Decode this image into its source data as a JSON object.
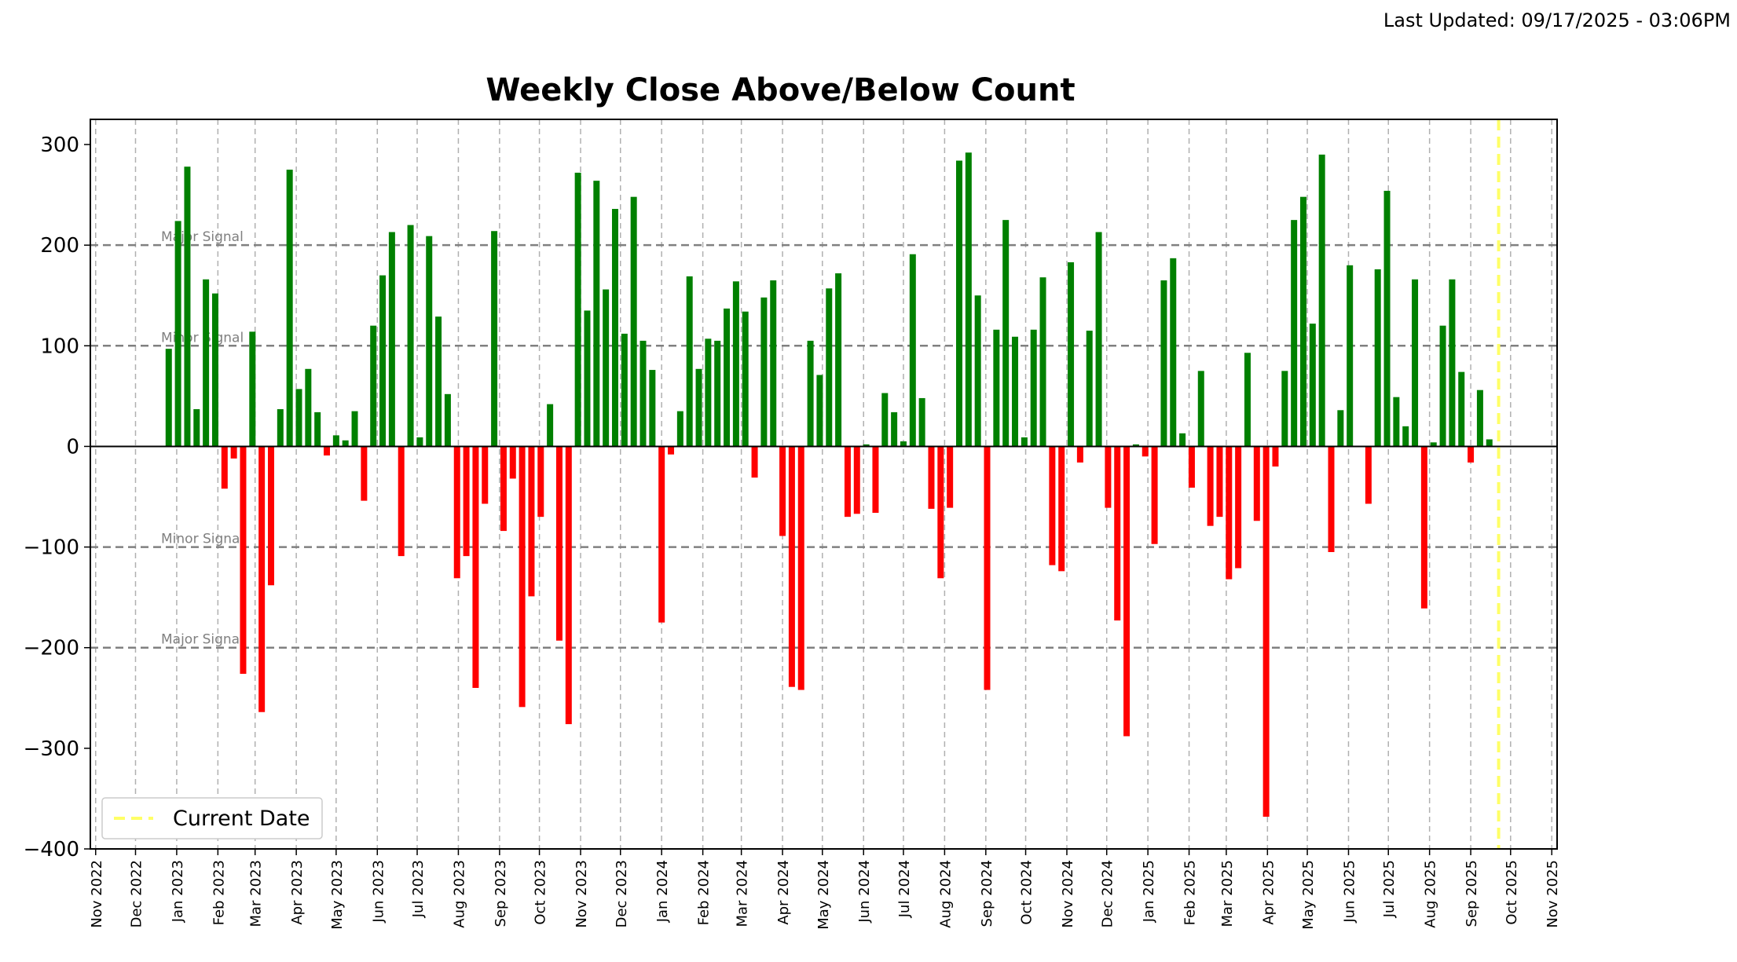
{
  "header": {
    "last_updated": "Last Updated: 09/17/2025 - 03:06PM"
  },
  "chart_data": {
    "type": "bar",
    "title": "Weekly Close Above/Below Count",
    "xlabel": "",
    "ylabel": "",
    "ylim": [
      -400,
      325
    ],
    "xlim": [
      "2022-10-28",
      "2025-11-05"
    ],
    "yticks": [
      -400,
      -300,
      -200,
      -100,
      0,
      100,
      200,
      300
    ],
    "ytick_labels": [
      "−400",
      "−300",
      "−200",
      "−100",
      "0",
      "100",
      "200",
      "300"
    ],
    "xticks": [
      {
        "date": "2022-11-01",
        "label": "Nov 2022"
      },
      {
        "date": "2022-12-01",
        "label": "Dec 2022"
      },
      {
        "date": "2023-01-01",
        "label": "Jan 2023"
      },
      {
        "date": "2023-02-01",
        "label": "Feb 2023"
      },
      {
        "date": "2023-03-01",
        "label": "Mar 2023"
      },
      {
        "date": "2023-04-01",
        "label": "Apr 2023"
      },
      {
        "date": "2023-05-01",
        "label": "May 2023"
      },
      {
        "date": "2023-06-01",
        "label": "Jun 2023"
      },
      {
        "date": "2023-07-01",
        "label": "Jul 2023"
      },
      {
        "date": "2023-08-01",
        "label": "Aug 2023"
      },
      {
        "date": "2023-09-01",
        "label": "Sep 2023"
      },
      {
        "date": "2023-10-01",
        "label": "Oct 2023"
      },
      {
        "date": "2023-11-01",
        "label": "Nov 2023"
      },
      {
        "date": "2023-12-01",
        "label": "Dec 2023"
      },
      {
        "date": "2024-01-01",
        "label": "Jan 2024"
      },
      {
        "date": "2024-02-01",
        "label": "Feb 2024"
      },
      {
        "date": "2024-03-01",
        "label": "Mar 2024"
      },
      {
        "date": "2024-04-01",
        "label": "Apr 2024"
      },
      {
        "date": "2024-05-01",
        "label": "May 2024"
      },
      {
        "date": "2024-06-01",
        "label": "Jun 2024"
      },
      {
        "date": "2024-07-01",
        "label": "Jul 2024"
      },
      {
        "date": "2024-08-01",
        "label": "Aug 2024"
      },
      {
        "date": "2024-09-01",
        "label": "Sep 2024"
      },
      {
        "date": "2024-10-01",
        "label": "Oct 2024"
      },
      {
        "date": "2024-11-01",
        "label": "Nov 2024"
      },
      {
        "date": "2024-12-01",
        "label": "Dec 2024"
      },
      {
        "date": "2025-01-01",
        "label": "Jan 2025"
      },
      {
        "date": "2025-02-01",
        "label": "Feb 2025"
      },
      {
        "date": "2025-03-01",
        "label": "Mar 2025"
      },
      {
        "date": "2025-04-01",
        "label": "Apr 2025"
      },
      {
        "date": "2025-05-01",
        "label": "May 2025"
      },
      {
        "date": "2025-06-01",
        "label": "Jun 2025"
      },
      {
        "date": "2025-07-01",
        "label": "Jul 2025"
      },
      {
        "date": "2025-08-01",
        "label": "Aug 2025"
      },
      {
        "date": "2025-09-01",
        "label": "Sep 2025"
      },
      {
        "date": "2025-10-01",
        "label": "Oct 2025"
      },
      {
        "date": "2025-11-01",
        "label": "Nov 2025"
      }
    ],
    "grid": true,
    "colors": {
      "positive": "#008000",
      "negative": "#ff0000",
      "current_date": "#ffff66",
      "reference": "#808080"
    },
    "reference_lines": [
      {
        "value": 200,
        "label": "Major Signal"
      },
      {
        "value": 100,
        "label": "Minor Signal"
      },
      {
        "value": -100,
        "label": "Minor Signal"
      },
      {
        "value": -200,
        "label": "Major Signal"
      }
    ],
    "current_date": "2025-09-22",
    "legend": {
      "position": "lower-left",
      "entries": [
        {
          "label": "Current Date",
          "style": "dashed-line",
          "color": "#ffff66"
        }
      ]
    },
    "series": [
      {
        "dates": [
          "2022-12-26",
          "2023-01-02",
          "2023-01-09",
          "2023-01-16",
          "2023-01-23",
          "2023-01-30",
          "2023-02-06",
          "2023-02-13",
          "2023-02-20",
          "2023-02-27",
          "2023-03-06",
          "2023-03-13",
          "2023-03-20",
          "2023-03-27",
          "2023-04-03",
          "2023-04-10",
          "2023-04-17",
          "2023-04-24",
          "2023-05-01",
          "2023-05-08",
          "2023-05-15",
          "2023-05-22",
          "2023-05-29",
          "2023-06-05",
          "2023-06-12",
          "2023-06-19",
          "2023-06-26",
          "2023-07-03",
          "2023-07-10",
          "2023-07-17",
          "2023-07-24",
          "2023-07-31",
          "2023-08-07",
          "2023-08-14",
          "2023-08-21",
          "2023-08-28",
          "2023-09-04",
          "2023-09-11",
          "2023-09-18",
          "2023-09-25",
          "2023-10-02",
          "2023-10-09",
          "2023-10-16",
          "2023-10-23",
          "2023-10-30",
          "2023-11-06",
          "2023-11-13",
          "2023-11-20",
          "2023-11-27",
          "2023-12-04",
          "2023-12-11",
          "2023-12-18",
          "2023-12-25",
          "2024-01-01",
          "2024-01-08",
          "2024-01-15",
          "2024-01-22",
          "2024-01-29",
          "2024-02-05",
          "2024-02-12",
          "2024-02-19",
          "2024-02-26",
          "2024-03-04",
          "2024-03-11",
          "2024-03-18",
          "2024-03-25",
          "2024-04-01",
          "2024-04-08",
          "2024-04-15",
          "2024-04-22",
          "2024-04-29",
          "2024-05-06",
          "2024-05-13",
          "2024-05-20",
          "2024-05-27",
          "2024-06-03",
          "2024-06-10",
          "2024-06-17",
          "2024-06-24",
          "2024-07-01",
          "2024-07-08",
          "2024-07-15",
          "2024-07-22",
          "2024-07-29",
          "2024-08-05",
          "2024-08-12",
          "2024-08-19",
          "2024-08-26",
          "2024-09-02",
          "2024-09-09",
          "2024-09-16",
          "2024-09-23",
          "2024-09-30",
          "2024-10-07",
          "2024-10-14",
          "2024-10-21",
          "2024-10-28",
          "2024-11-04",
          "2024-11-11",
          "2024-11-18",
          "2024-11-25",
          "2024-12-02",
          "2024-12-09",
          "2024-12-16",
          "2024-12-23",
          "2024-12-30",
          "2025-01-06",
          "2025-01-13",
          "2025-01-20",
          "2025-01-27",
          "2025-02-03",
          "2025-02-10",
          "2025-02-17",
          "2025-02-24",
          "2025-03-03",
          "2025-03-10",
          "2025-03-17",
          "2025-03-24",
          "2025-03-31",
          "2025-04-07",
          "2025-04-14",
          "2025-04-21",
          "2025-04-28",
          "2025-05-05",
          "2025-05-12",
          "2025-05-19",
          "2025-05-26",
          "2025-06-02",
          "2025-06-09",
          "2025-06-16",
          "2025-06-23",
          "2025-06-30",
          "2025-07-07",
          "2025-07-14",
          "2025-07-21",
          "2025-07-28",
          "2025-08-04",
          "2025-08-11",
          "2025-08-18",
          "2025-08-25",
          "2025-09-01",
          "2025-09-08",
          "2025-09-15"
        ],
        "values": [
          97,
          224,
          278,
          37,
          166,
          152,
          -42,
          -12,
          -226,
          114,
          -264,
          -138,
          37,
          275,
          57,
          77,
          34,
          -9,
          11,
          6,
          35,
          -54,
          120,
          170,
          213,
          -109,
          220,
          9,
          209,
          129,
          52,
          -131,
          -109,
          -240,
          -57,
          214,
          -84,
          -32,
          -259,
          -149,
          -70,
          42,
          -193,
          -276,
          272,
          135,
          264,
          156,
          236,
          112,
          248,
          105,
          76,
          -175,
          -8,
          35,
          169,
          77,
          107,
          105,
          137,
          164,
          134,
          -31,
          148,
          165,
          -89,
          -239,
          -242,
          105,
          71,
          157,
          172,
          -70,
          -67,
          2,
          -66,
          53,
          34,
          5,
          191,
          48,
          -62,
          -131,
          -61,
          284,
          292,
          150,
          -242,
          116,
          225,
          109,
          9,
          116,
          168,
          -118,
          -124,
          183,
          -16,
          115,
          213,
          -61,
          -173,
          -288,
          2,
          -10,
          -97,
          165,
          187,
          13,
          -41,
          75,
          -79,
          -70,
          -132,
          -121,
          93,
          -74,
          -368,
          -20,
          75,
          225,
          248,
          122,
          290,
          -105,
          36,
          180,
          0,
          -57,
          176,
          254,
          49,
          20,
          166,
          -161,
          4,
          120,
          166,
          74,
          -16,
          56,
          7
        ]
      }
    ]
  }
}
